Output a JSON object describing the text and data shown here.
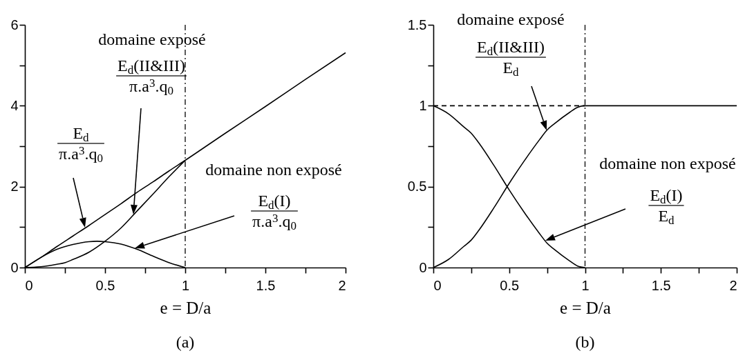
{
  "chart_data": [
    {
      "type": "line",
      "title": "(a)",
      "xlabel": "e = D/a",
      "xlim": [
        0,
        2
      ],
      "xticks": [
        0,
        {
          "value": 0.25,
          "label": null
        },
        0.5,
        {
          "value": 0.75,
          "label": null
        },
        1,
        {
          "value": 1.25,
          "label": null
        },
        1.5,
        {
          "value": 1.75,
          "label": null
        },
        2
      ],
      "ylim": [
        0,
        6
      ],
      "yticks": [
        0,
        {
          "value": 1,
          "label": null
        },
        2,
        {
          "value": 3,
          "label": null
        },
        4,
        {
          "value": 5,
          "label": null
        },
        6
      ],
      "series": [
        {
          "color": "#000000",
          "x": [
            0,
            0.1,
            0.2,
            0.3,
            0.4,
            0.5,
            0.6,
            0.7,
            0.8,
            0.9,
            1,
            1.25,
            1.5,
            1.75,
            2
          ],
          "values": [
            0,
            0.25,
            0.52,
            0.78,
            1.04,
            1.31,
            1.58,
            1.86,
            2.12,
            2.39,
            2.65,
            3.32,
            3.98,
            4.65,
            5.31
          ]
        },
        {
          "color": "#000000",
          "x": [
            0,
            0.1,
            0.2,
            0.25,
            0.3,
            0.4,
            0.5,
            0.6,
            0.7,
            0.8,
            0.9,
            1
          ],
          "values": [
            0,
            0.02,
            0.08,
            0.12,
            0.2,
            0.38,
            0.65,
            0.98,
            1.4,
            1.82,
            2.25,
            2.65
          ]
        },
        {
          "color": "#000000",
          "x": [
            0,
            0.1,
            0.2,
            0.3,
            0.4,
            0.45,
            0.5,
            0.6,
            0.7,
            0.8,
            0.9,
            1
          ],
          "values": [
            0,
            0.25,
            0.45,
            0.57,
            0.64,
            0.65,
            0.64,
            0.58,
            0.45,
            0.28,
            0.12,
            0
          ]
        }
      ],
      "ref_lines": [
        {
          "axis": "x",
          "value": 1,
          "line_style": "dashed"
        }
      ],
      "annotations": [
        "domaine exposé",
        "E$_{d}$(II&III)",
        "π.a$^{3}$.q$_{0}$",
        "E$_{d}$",
        "π.a$^{3}$.q$_{0}$",
        "domaine non exposé",
        "E$_{d}$(I)",
        "π.a$^{3}$.q$_{0}$"
      ]
    },
    {
      "type": "line",
      "title": "(b)",
      "xlabel": "e = D/a",
      "xlim": [
        0,
        2
      ],
      "xticks": [
        0,
        {
          "value": 0.25,
          "label": null
        },
        0.5,
        {
          "value": 0.75,
          "label": null
        },
        1,
        {
          "value": 1.25,
          "label": null
        },
        1.5,
        {
          "value": 1.75,
          "label": null
        },
        2
      ],
      "ylim": [
        0,
        1.5
      ],
      "yticks": [
        0,
        {
          "value": 0.25,
          "label": null
        },
        0.5,
        {
          "value": 0.75,
          "label": null
        },
        1,
        {
          "value": 1.25,
          "label": null
        },
        1.5
      ],
      "series": [
        {
          "color": "#000000",
          "x": [
            0,
            0.1,
            0.2,
            0.25,
            0.3,
            0.4,
            0.5,
            0.6,
            0.7,
            0.75,
            0.8,
            0.9,
            0.95,
            1,
            1.5,
            2
          ],
          "values": [
            0,
            0.05,
            0.13,
            0.17,
            0.23,
            0.37,
            0.52,
            0.66,
            0.79,
            0.85,
            0.89,
            0.96,
            0.99,
            1,
            1,
            1
          ]
        },
        {
          "color": "#000000",
          "x": [
            0,
            0.1,
            0.2,
            0.25,
            0.3,
            0.4,
            0.5,
            0.6,
            0.7,
            0.75,
            0.8,
            0.9,
            0.95,
            1
          ],
          "values": [
            1,
            0.95,
            0.87,
            0.83,
            0.77,
            0.63,
            0.48,
            0.34,
            0.21,
            0.15,
            0.11,
            0.04,
            0.01,
            0
          ]
        },
        {
          "color": "#000000",
          "line_style": "dashed",
          "x": [
            0,
            1
          ],
          "values": [
            1,
            1
          ]
        }
      ],
      "ref_lines": [
        {
          "axis": "x",
          "value": 1,
          "line_style": "dashed"
        }
      ],
      "annotations": [
        "domaine exposé",
        "E$_{d}$(II&III)",
        "E$_{d}$",
        "domaine non exposé",
        "E$_{d}$(I)",
        "E$_{d}$"
      ]
    }
  ]
}
